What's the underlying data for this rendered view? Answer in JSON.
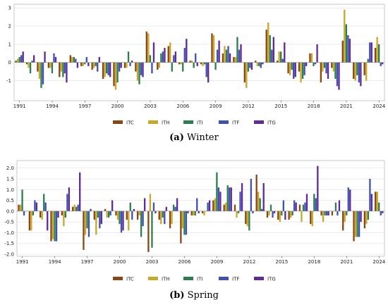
{
  "colors": {
    "ITC": "#8B4513",
    "ITH": "#C8A82A",
    "ITI": "#2E7D4F",
    "ITF": "#3F51B5",
    "ITG": "#5E2B97"
  },
  "captions": {
    "winter": {
      "letter": "(a)",
      "text": "Winter"
    },
    "spring": {
      "letter": "(b)",
      "text": "Spring"
    }
  },
  "chart_data": [
    {
      "type": "bar",
      "name": "Winter",
      "x": [
        1991,
        1992,
        1993,
        1994,
        1995,
        1996,
        1997,
        1998,
        1999,
        2000,
        2001,
        2002,
        2003,
        2004,
        2005,
        2006,
        2007,
        2008,
        2009,
        2010,
        2011,
        2012,
        2013,
        2014,
        2015,
        2016,
        2017,
        2018,
        2019,
        2020,
        2021,
        2022,
        2023,
        2024
      ],
      "xticks": [
        1991,
        1994,
        1997,
        2000,
        2003,
        2006,
        2009,
        2012,
        2015,
        2018,
        2021,
        2024
      ],
      "ylim": [
        -2.1,
        3.2
      ],
      "yticks": [
        -1,
        0,
        1,
        2,
        3
      ],
      "grid": "horizontal",
      "legend_position": "bottom-center",
      "series": [
        {
          "name": "ITC",
          "values": [
            0.1,
            -0.1,
            -0.5,
            -0.3,
            -0.8,
            0.4,
            -0.2,
            -0.4,
            -0.9,
            -1.3,
            -0.3,
            -0.5,
            1.7,
            -0.4,
            0.9,
            -0.1,
            0.1,
            -0.1,
            1.6,
            0.5,
            0.3,
            -1.1,
            0.1,
            1.8,
            0.1,
            -0.6,
            -0.5,
            0.5,
            -1.1,
            -0.3,
            1.2,
            -0.9,
            -0.7,
            0.8
          ]
        },
        {
          "name": "ITH",
          "values": [
            0.2,
            -0.3,
            -0.9,
            -0.3,
            -0.5,
            0.3,
            -0.2,
            -0.3,
            -0.8,
            -1.5,
            -0.3,
            -1.0,
            1.6,
            -0.3,
            1.1,
            -0.1,
            0.1,
            -0.2,
            1.5,
            0.9,
            0.3,
            -1.4,
            -0.2,
            2.2,
            0.6,
            -0.7,
            -1.1,
            0.5,
            -0.5,
            -0.5,
            2.9,
            -1.0,
            -1.0,
            1.4
          ]
        },
        {
          "name": "ITI",
          "values": [
            0.3,
            -0.6,
            -1.4,
            -0.6,
            -0.8,
            0.3,
            -0.1,
            -0.2,
            -0.6,
            -1.1,
            0.6,
            -1.2,
            0.4,
            0.5,
            -0.5,
            -0.5,
            -0.3,
            -0.1,
            -0.4,
            0.7,
            1.4,
            -0.5,
            -0.2,
            1.5,
            0.6,
            -0.4,
            -0.9,
            -0.2,
            -0.3,
            -0.9,
            2.1,
            -0.7,
            0.2,
            1.0
          ]
        },
        {
          "name": "ITF",
          "values": [
            0.4,
            0.1,
            -1.2,
            0.5,
            -0.6,
            0.2,
            0.3,
            -0.5,
            -0.7,
            -0.5,
            -0.2,
            -0.7,
            -0.6,
            0.6,
            0.4,
            0.8,
            0.5,
            -0.8,
            0.7,
            0.9,
            0.7,
            -0.3,
            -0.3,
            0.7,
            0.2,
            -0.9,
            -0.7,
            -0.1,
            -0.6,
            -1.3,
            1.5,
            -1.1,
            1.1,
            -0.2
          ]
        },
        {
          "name": "ITG",
          "values": [
            0.6,
            0.4,
            0.6,
            0.3,
            -1.1,
            -0.3,
            -0.2,
            0.3,
            -0.8,
            -0.3,
            0.1,
            -0.8,
            1.1,
            0.8,
            0.6,
            1.3,
            -0.2,
            -1.1,
            1.2,
            0.5,
            1.0,
            -0.4,
            -0.1,
            1.4,
            1.1,
            -0.8,
            -0.2,
            1.0,
            -0.9,
            -1.5,
            1.3,
            -1.3,
            1.1,
            -0.1
          ]
        }
      ]
    },
    {
      "type": "bar",
      "name": "Spring",
      "x": [
        1991,
        1992,
        1993,
        1994,
        1995,
        1996,
        1997,
        1998,
        1999,
        2000,
        2001,
        2002,
        2003,
        2004,
        2005,
        2006,
        2007,
        2008,
        2009,
        2010,
        2011,
        2012,
        2013,
        2014,
        2015,
        2016,
        2017,
        2018,
        2019,
        2020,
        2021,
        2022,
        2023,
        2024
      ],
      "xticks": [
        1991,
        1994,
        1997,
        2000,
        2003,
        2006,
        2009,
        2012,
        2015,
        2018,
        2021,
        2024
      ],
      "ylim": [
        -2.1,
        2.35
      ],
      "yticks": [
        -2.0,
        -1.5,
        -1.0,
        -0.5,
        0.0,
        0.5,
        1.0,
        1.5,
        2.0
      ],
      "grid": "horizontal",
      "legend_position": "bottom-center",
      "series": [
        {
          "name": "ITC",
          "values": [
            0.3,
            -0.9,
            -0.3,
            -1.4,
            -0.2,
            0.2,
            -1.8,
            -0.4,
            0.1,
            -0.2,
            -0.4,
            -0.4,
            -1.9,
            -0.4,
            -0.8,
            -1.5,
            -0.2,
            -0.1,
            0.5,
            0.3,
            0.3,
            -0.6,
            1.7,
            -0.3,
            -0.4,
            -0.4,
            0.3,
            -0.6,
            -0.2,
            -0.2,
            -0.9,
            -1.4,
            -0.8,
            0.9
          ]
        },
        {
          "name": "ITH",
          "values": [
            0.3,
            -0.9,
            -0.4,
            -1.3,
            -0.7,
            0.3,
            -1.1,
            -1.1,
            -0.3,
            -0.4,
            -0.9,
            -0.2,
            0.8,
            -0.6,
            -0.6,
            -0.8,
            -0.2,
            -0.2,
            0.6,
            0.4,
            -0.3,
            -0.7,
            0.9,
            -0.2,
            -0.5,
            -0.3,
            -0.5,
            -0.7,
            -0.5,
            0.0,
            -0.5,
            -1.2,
            -0.6,
            0.9
          ]
        },
        {
          "name": "ITI",
          "values": [
            1.0,
            -0.2,
            0.8,
            -1.4,
            -0.3,
            0.2,
            -0.8,
            -0.3,
            -0.3,
            -0.6,
            0.4,
            -1.2,
            -1.7,
            -0.3,
            0.3,
            -1.1,
            -0.2,
            0.0,
            1.8,
            1.2,
            -0.1,
            -0.9,
            0.6,
            0.3,
            -0.2,
            -0.2,
            0.3,
            0.8,
            -0.2,
            0.4,
            -0.2,
            -1.2,
            -0.4,
            0.4
          ]
        },
        {
          "name": "ITF",
          "values": [
            -0.2,
            0.5,
            0.4,
            -1.4,
            0.8,
            0.3,
            -1.2,
            -0.8,
            -0.2,
            -1.0,
            -0.4,
            -0.7,
            0.4,
            -0.6,
            0.2,
            -1.1,
            0.6,
            0.4,
            1.1,
            1.1,
            0.9,
            1.5,
            0.1,
            -0.3,
            0.5,
            0.5,
            0.4,
            0.6,
            -0.2,
            -0.2,
            1.1,
            -1.2,
            1.5,
            -0.2
          ]
        },
        {
          "name": "ITG",
          "values": [
            0.0,
            0.4,
            -0.9,
            -0.3,
            1.1,
            1.8,
            0.1,
            -0.6,
            0.5,
            -0.9,
            0.1,
            0.6,
            -0.1,
            0.2,
            0.6,
            -0.1,
            -0.1,
            0.5,
            0.9,
            1.1,
            1.3,
            -0.1,
            1.3,
            -0.1,
            -0.4,
            0.4,
            0.8,
            2.1,
            -0.2,
            0.5,
            1.0,
            -0.5,
            0.8,
            -0.1
          ]
        }
      ]
    }
  ]
}
